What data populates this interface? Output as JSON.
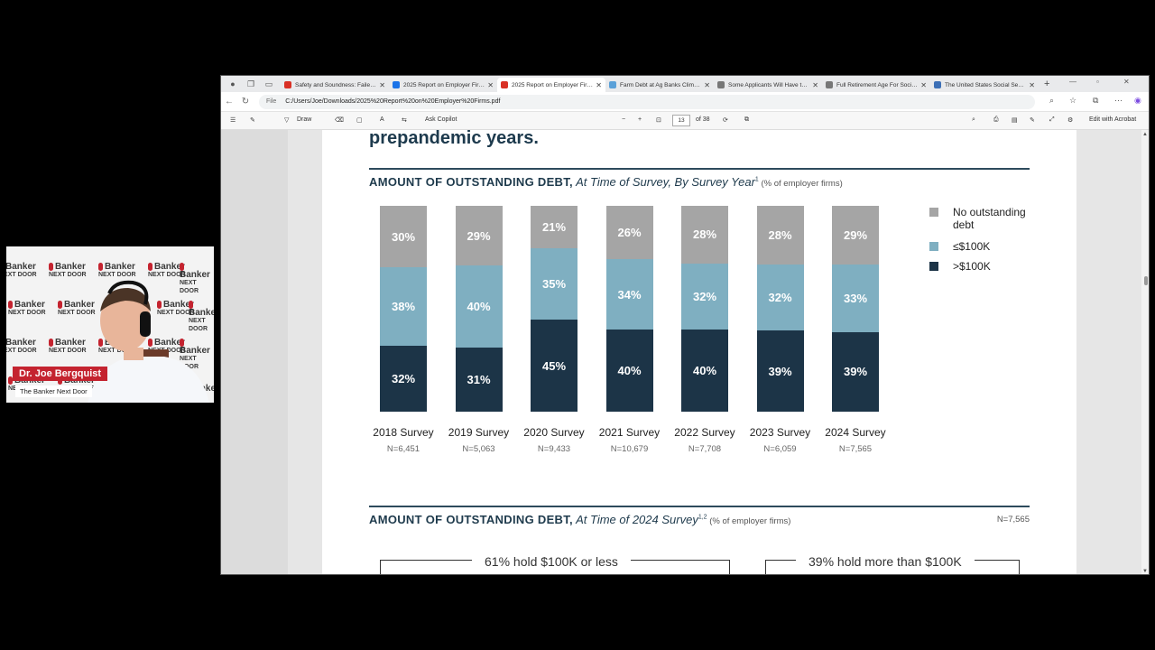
{
  "browser": {
    "tabs": [
      {
        "label": "Safety and Soundness: Failed B...",
        "color": "#d93025",
        "active": false
      },
      {
        "label": "2025 Report on Employer Firms...",
        "color": "#1a73e8",
        "active": false
      },
      {
        "label": "2025 Report on Employer Firms...",
        "color": "#d93025",
        "active": true
      },
      {
        "label": "Farm Debt at Ag Banks Climbs...",
        "color": "#5aa0d8",
        "active": false
      },
      {
        "label": "Some Applicants Will Have to...",
        "color": "#777777",
        "active": false
      },
      {
        "label": "Full Retirement Age For Social...",
        "color": "#777777",
        "active": false
      },
      {
        "label": "The United States Social Securi...",
        "color": "#3c6fb6",
        "active": false
      }
    ],
    "address": {
      "file_label": "File",
      "url": "C:/Users/Joe/Downloads/2025%20Report%20on%20Employer%20Firms.pdf"
    },
    "pdf_toolbar": {
      "draw_label": "Draw",
      "copilot_label": "Ask Copilot",
      "page_number": "13",
      "page_total": "of 38",
      "acrobat_label": "Edit with Acrobat"
    }
  },
  "document": {
    "heading": "prepandemic years.",
    "section1": {
      "title_bold": "AMOUNT OF OUTSTANDING DEBT,",
      "title_italic": " At Time of Survey, By Survey Year",
      "title_sup": "1",
      "title_note": " (% of employer firms)"
    },
    "section2": {
      "title_bold": "AMOUNT OF OUTSTANDING DEBT,",
      "title_italic": " At Time of 2024 Survey",
      "title_sup": "1,2",
      "title_note": " (% of employer firms)",
      "n": "N=7,565",
      "box1": "61% hold $100K or less",
      "box2": "39% hold more than $100K"
    }
  },
  "chart_data": {
    "type": "bar",
    "stacked": true,
    "categories": [
      "2018 Survey",
      "2019 Survey",
      "2020 Survey",
      "2021 Survey",
      "2022 Survey",
      "2023 Survey",
      "2024 Survey"
    ],
    "sample_sizes": [
      "N=6,451",
      "N=5,063",
      "N=9,433",
      "N=10,679",
      "N=7,708",
      "N=6,059",
      "N=7,565"
    ],
    "series": [
      {
        "name": ">$100K",
        "color": "#1c3447",
        "values": [
          32,
          31,
          45,
          40,
          40,
          39,
          39
        ]
      },
      {
        "name": "≤$100K",
        "color": "#7fafc1",
        "values": [
          38,
          40,
          35,
          34,
          32,
          32,
          33
        ]
      },
      {
        "name": "No outstanding debt",
        "color": "#a5a5a5",
        "values": [
          30,
          29,
          21,
          26,
          28,
          28,
          29
        ]
      }
    ],
    "legend_position": "right",
    "legend": [
      "No outstanding debt",
      "≤$100K",
      ">$100K"
    ]
  },
  "webcam": {
    "name": "Dr. Joe Bergquist",
    "show": "The Banker Next Door",
    "logo_text_1": "Banker",
    "logo_text_2": "NEXT DOOR"
  }
}
